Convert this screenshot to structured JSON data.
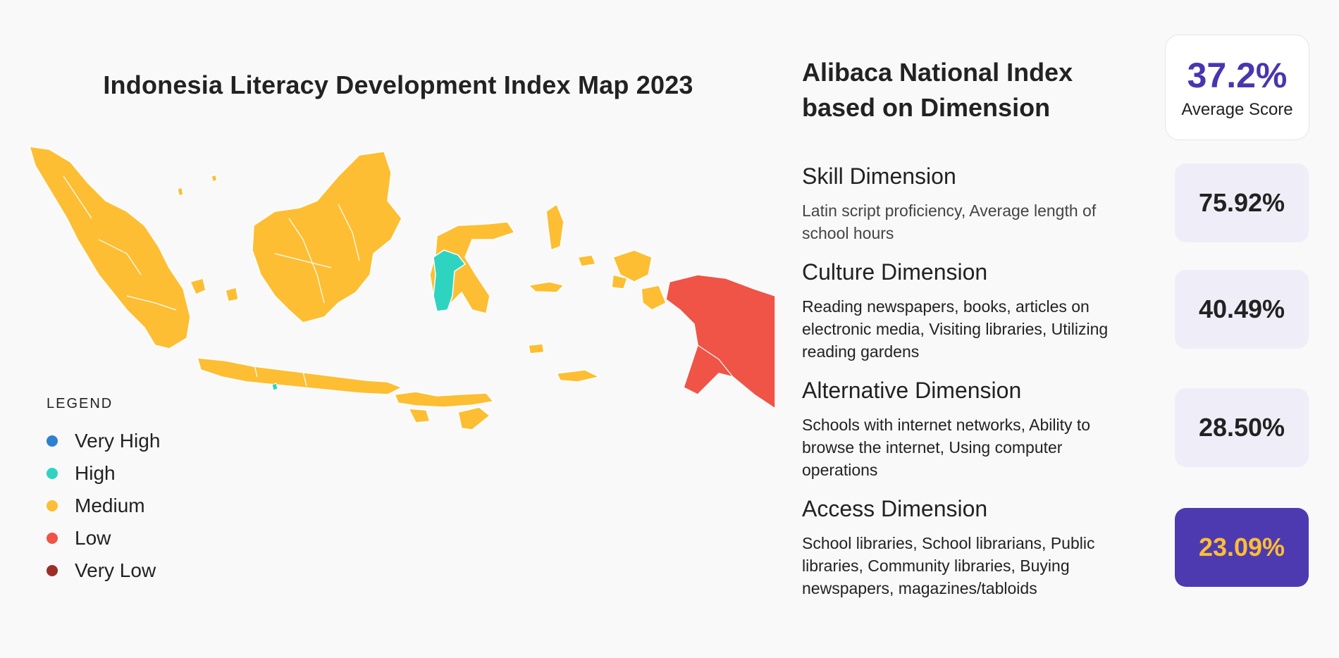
{
  "map": {
    "title": "Indonesia Literacy Development Index Map 2023",
    "legend": {
      "title": "LEGEND",
      "items": [
        {
          "label": "Very High",
          "color": "#2f80d0"
        },
        {
          "label": "High",
          "color": "#2fd4c0"
        },
        {
          "label": "Medium",
          "color": "#fdbe33"
        },
        {
          "label": "Low",
          "color": "#ef5446"
        },
        {
          "label": "Very Low",
          "color": "#9b2f27"
        }
      ]
    },
    "colors": {
      "medium": "#fdbe33",
      "high": "#2fd4c0",
      "low": "#ef5446"
    }
  },
  "summary": {
    "title_line1": "Alibaca National Index",
    "title_line2": "based on Dimension",
    "average_value": "37.2%",
    "average_label": "Average Score",
    "accent_color": "#4a35b0",
    "highlight_text_color": "#fdbe33"
  },
  "dimensions": [
    {
      "title": "Skill Dimension",
      "description": "Latin script proficiency, Average length of school hours",
      "score": "75.92%"
    },
    {
      "title": "Culture Dimension",
      "description": "Reading newspapers, books, articles on electronic media, Visiting libraries, Utilizing reading gardens",
      "score": "40.49%"
    },
    {
      "title": "Alternative Dimension",
      "description": "Schools with internet networks, Ability to browse the internet, Using computer operations",
      "score": "28.50%"
    },
    {
      "title": "Access Dimension",
      "description": "School libraries, School librarians, Public libraries, Community libraries, Buying newspapers, magazines/tabloids",
      "score": "23.09%",
      "highlighted": true
    }
  ]
}
